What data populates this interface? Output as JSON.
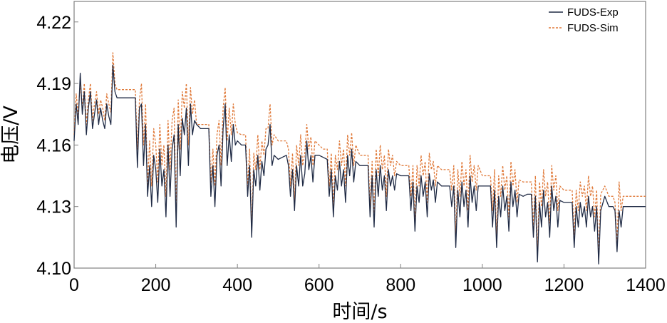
{
  "chart_data": {
    "type": "line",
    "xlabel": "时间/s",
    "ylabel": "电压/V",
    "xlim": [
      0,
      1400
    ],
    "ylim": [
      4.1,
      4.23
    ],
    "xticks": [
      0,
      200,
      400,
      600,
      800,
      1000,
      1200,
      1400
    ],
    "xtick_labels": [
      "0",
      "200",
      "400",
      "600",
      "800",
      "1000",
      "1200",
      "1400"
    ],
    "yticks": [
      4.1,
      4.13,
      4.16,
      4.19,
      4.22
    ],
    "ytick_labels": [
      "4.10",
      "4.13",
      "4.16",
      "4.19",
      "4.22"
    ],
    "grid": false,
    "legend_position": "top-right",
    "series": [
      {
        "name": "FUDS-Exp",
        "color": "#1f2a44",
        "style": "solid",
        "x": [
          0,
          5,
          10,
          15,
          20,
          25,
          30,
          35,
          40,
          45,
          50,
          55,
          60,
          65,
          70,
          75,
          80,
          85,
          90,
          95,
          100,
          105,
          150,
          155,
          160,
          165,
          170,
          175,
          180,
          185,
          190,
          195,
          200,
          205,
          210,
          215,
          220,
          225,
          230,
          235,
          240,
          245,
          250,
          255,
          260,
          265,
          270,
          275,
          280,
          285,
          290,
          295,
          300,
          310,
          320,
          330,
          335,
          340,
          345,
          350,
          355,
          360,
          365,
          370,
          375,
          380,
          385,
          390,
          395,
          400,
          410,
          420,
          425,
          430,
          435,
          440,
          445,
          450,
          455,
          460,
          465,
          470,
          475,
          480,
          485,
          490,
          500,
          510,
          520,
          525,
          530,
          535,
          540,
          545,
          550,
          555,
          560,
          565,
          570,
          575,
          580,
          585,
          590,
          600,
          610,
          620,
          625,
          630,
          635,
          640,
          645,
          650,
          655,
          660,
          665,
          670,
          675,
          680,
          685,
          690,
          700,
          710,
          720,
          725,
          730,
          735,
          740,
          745,
          750,
          755,
          760,
          765,
          770,
          775,
          780,
          785,
          790,
          800,
          810,
          820,
          825,
          830,
          835,
          840,
          845,
          850,
          855,
          860,
          865,
          870,
          875,
          880,
          885,
          890,
          900,
          910,
          920,
          925,
          930,
          935,
          940,
          945,
          950,
          955,
          960,
          965,
          970,
          975,
          980,
          985,
          990,
          1000,
          1010,
          1020,
          1025,
          1030,
          1035,
          1040,
          1045,
          1050,
          1055,
          1060,
          1065,
          1070,
          1075,
          1080,
          1085,
          1090,
          1100,
          1110,
          1120,
          1125,
          1130,
          1135,
          1140,
          1145,
          1150,
          1155,
          1160,
          1165,
          1170,
          1175,
          1180,
          1185,
          1190,
          1200,
          1210,
          1220,
          1225,
          1230,
          1235,
          1240,
          1245,
          1250,
          1255,
          1260,
          1265,
          1270,
          1275,
          1280,
          1285,
          1290,
          1300,
          1310,
          1320,
          1325,
          1330,
          1335,
          1340,
          1345,
          1350,
          1400
        ],
        "y": [
          4.162,
          4.18,
          4.17,
          4.195,
          4.175,
          4.186,
          4.165,
          4.178,
          4.186,
          4.168,
          4.175,
          4.182,
          4.17,
          4.178,
          4.172,
          4.168,
          4.18,
          4.174,
          4.17,
          4.199,
          4.186,
          4.183,
          4.183,
          4.149,
          4.178,
          4.18,
          4.15,
          4.17,
          4.135,
          4.15,
          4.13,
          4.155,
          4.148,
          4.132,
          4.158,
          4.14,
          4.148,
          4.125,
          4.16,
          4.135,
          4.158,
          4.165,
          4.12,
          4.17,
          4.145,
          4.173,
          4.165,
          4.178,
          4.15,
          4.18,
          4.165,
          4.172,
          4.17,
          4.168,
          4.168,
          4.168,
          4.135,
          4.15,
          4.13,
          4.155,
          4.16,
          4.14,
          4.168,
          4.18,
          4.15,
          4.165,
          4.152,
          4.17,
          4.16,
          4.162,
          4.16,
          4.16,
          4.135,
          4.15,
          4.115,
          4.148,
          4.14,
          4.155,
          4.138,
          4.152,
          4.145,
          4.158,
          4.16,
          4.17,
          4.15,
          4.155,
          4.153,
          4.154,
          4.155,
          4.15,
          4.135,
          4.148,
          4.128,
          4.15,
          4.14,
          4.155,
          4.14,
          4.146,
          4.162,
          4.148,
          4.155,
          4.142,
          4.155,
          4.155,
          4.154,
          4.153,
          4.135,
          4.148,
          4.125,
          4.145,
          4.138,
          4.152,
          4.14,
          4.148,
          4.132,
          4.155,
          4.145,
          4.158,
          4.142,
          4.152,
          4.15,
          4.15,
          4.15,
          4.125,
          4.145,
          4.12,
          4.148,
          4.135,
          4.15,
          4.138,
          4.145,
          4.128,
          4.148,
          4.14,
          4.145,
          4.138,
          4.146,
          4.145,
          4.145,
          4.145,
          4.128,
          4.142,
          4.118,
          4.14,
          4.132,
          4.145,
          4.135,
          4.142,
          4.125,
          4.146,
          4.138,
          4.143,
          4.132,
          4.142,
          4.14,
          4.14,
          4.14,
          4.13,
          4.14,
          4.11,
          4.138,
          4.125,
          4.142,
          4.13,
          4.138,
          4.12,
          4.145,
          4.132,
          4.14,
          4.128,
          4.14,
          4.14,
          4.14,
          4.14,
          4.12,
          4.138,
          4.11,
          4.135,
          4.125,
          4.14,
          4.128,
          4.135,
          4.118,
          4.142,
          4.13,
          4.138,
          4.125,
          4.136,
          4.135,
          4.136,
          4.136,
          4.115,
          4.135,
          4.103,
          4.132,
          4.12,
          4.138,
          4.125,
          4.132,
          4.115,
          4.14,
          4.128,
          4.135,
          4.12,
          4.133,
          4.132,
          4.132,
          4.132,
          4.11,
          4.13,
          4.12,
          4.132,
          4.125,
          4.13,
          4.12,
          4.135,
          4.125,
          4.13,
          4.118,
          4.13,
          4.102,
          4.128,
          4.135,
          4.13,
          4.13,
          4.128,
          4.108,
          4.128,
          4.12,
          4.13,
          4.13,
          4.13
        ]
      },
      {
        "name": "FUDS-Sim",
        "color": "#e07a3a",
        "style": "dashed",
        "x": [
          0,
          5,
          10,
          15,
          20,
          25,
          30,
          35,
          40,
          45,
          50,
          55,
          60,
          65,
          70,
          75,
          80,
          85,
          90,
          95,
          100,
          105,
          150,
          155,
          160,
          165,
          170,
          175,
          180,
          185,
          190,
          195,
          200,
          205,
          210,
          215,
          220,
          225,
          230,
          235,
          240,
          245,
          250,
          255,
          260,
          265,
          270,
          275,
          280,
          285,
          290,
          295,
          300,
          310,
          320,
          330,
          335,
          340,
          345,
          350,
          355,
          360,
          365,
          370,
          375,
          380,
          385,
          390,
          395,
          400,
          410,
          420,
          425,
          430,
          435,
          440,
          445,
          450,
          455,
          460,
          465,
          470,
          475,
          480,
          485,
          490,
          500,
          510,
          520,
          525,
          530,
          535,
          540,
          545,
          550,
          555,
          560,
          565,
          570,
          575,
          580,
          585,
          590,
          600,
          610,
          620,
          625,
          630,
          635,
          640,
          645,
          650,
          655,
          660,
          665,
          670,
          675,
          680,
          685,
          690,
          700,
          710,
          720,
          725,
          730,
          735,
          740,
          745,
          750,
          755,
          760,
          765,
          770,
          775,
          780,
          785,
          790,
          800,
          810,
          820,
          825,
          830,
          835,
          840,
          845,
          850,
          855,
          860,
          865,
          870,
          875,
          880,
          885,
          890,
          900,
          910,
          920,
          925,
          930,
          935,
          940,
          945,
          950,
          955,
          960,
          965,
          970,
          975,
          980,
          985,
          990,
          1000,
          1010,
          1020,
          1025,
          1030,
          1035,
          1040,
          1045,
          1050,
          1055,
          1060,
          1065,
          1070,
          1075,
          1080,
          1085,
          1090,
          1100,
          1110,
          1120,
          1125,
          1130,
          1135,
          1140,
          1145,
          1150,
          1155,
          1160,
          1165,
          1170,
          1175,
          1180,
          1185,
          1190,
          1200,
          1210,
          1220,
          1225,
          1230,
          1235,
          1240,
          1245,
          1250,
          1255,
          1260,
          1265,
          1270,
          1275,
          1280,
          1285,
          1290,
          1300,
          1310,
          1320,
          1325,
          1330,
          1335,
          1340,
          1345,
          1350,
          1400
        ],
        "y": [
          4.165,
          4.185,
          4.175,
          4.19,
          4.178,
          4.19,
          4.17,
          4.182,
          4.19,
          4.172,
          4.18,
          4.186,
          4.175,
          4.182,
          4.178,
          4.172,
          4.185,
          4.18,
          4.176,
          4.205,
          4.19,
          4.187,
          4.187,
          4.158,
          4.182,
          4.19,
          4.16,
          4.18,
          4.14,
          4.162,
          4.14,
          4.168,
          4.16,
          4.142,
          4.17,
          4.15,
          4.16,
          4.135,
          4.172,
          4.148,
          4.172,
          4.178,
          4.128,
          4.182,
          4.158,
          4.186,
          4.178,
          4.19,
          4.16,
          4.188,
          4.175,
          4.182,
          4.17,
          4.17,
          4.17,
          4.17,
          4.142,
          4.158,
          4.14,
          4.165,
          4.172,
          4.15,
          4.178,
          4.188,
          4.162,
          4.178,
          4.165,
          4.18,
          4.17,
          4.166,
          4.165,
          4.165,
          4.14,
          4.158,
          4.118,
          4.156,
          4.148,
          4.165,
          4.148,
          4.162,
          4.155,
          4.168,
          4.168,
          4.18,
          4.16,
          4.165,
          4.162,
          4.162,
          4.162,
          4.158,
          4.14,
          4.156,
          4.132,
          4.16,
          4.15,
          4.165,
          4.15,
          4.156,
          4.17,
          4.158,
          4.164,
          4.15,
          4.162,
          4.16,
          4.158,
          4.158,
          4.14,
          4.156,
          4.13,
          4.155,
          4.148,
          4.162,
          4.15,
          4.158,
          4.14,
          4.165,
          4.155,
          4.166,
          4.15,
          4.16,
          4.155,
          4.155,
          4.155,
          4.13,
          4.152,
          4.125,
          4.158,
          4.145,
          4.16,
          4.148,
          4.155,
          4.135,
          4.158,
          4.15,
          4.155,
          4.145,
          4.152,
          4.15,
          4.15,
          4.15,
          4.135,
          4.15,
          4.122,
          4.15,
          4.14,
          4.155,
          4.145,
          4.152,
          4.132,
          4.156,
          4.148,
          4.152,
          4.14,
          4.15,
          4.148,
          4.148,
          4.148,
          4.138,
          4.15,
          4.115,
          4.148,
          4.135,
          4.152,
          4.14,
          4.148,
          4.128,
          4.155,
          4.142,
          4.15,
          4.138,
          4.15,
          4.145,
          4.145,
          4.145,
          4.128,
          4.148,
          4.115,
          4.145,
          4.135,
          4.15,
          4.138,
          4.145,
          4.125,
          4.152,
          4.14,
          4.148,
          4.132,
          4.143,
          4.142,
          4.142,
          4.142,
          4.12,
          4.145,
          4.106,
          4.142,
          4.13,
          4.148,
          4.135,
          4.142,
          4.122,
          4.15,
          4.138,
          4.145,
          4.128,
          4.14,
          4.138,
          4.138,
          4.138,
          4.115,
          4.138,
          4.128,
          4.142,
          4.135,
          4.14,
          4.128,
          4.145,
          4.135,
          4.14,
          4.125,
          4.138,
          4.105,
          4.136,
          4.14,
          4.135,
          4.135,
          4.132,
          4.112,
          4.142,
          4.128,
          4.135,
          4.135,
          4.135
        ]
      }
    ]
  }
}
